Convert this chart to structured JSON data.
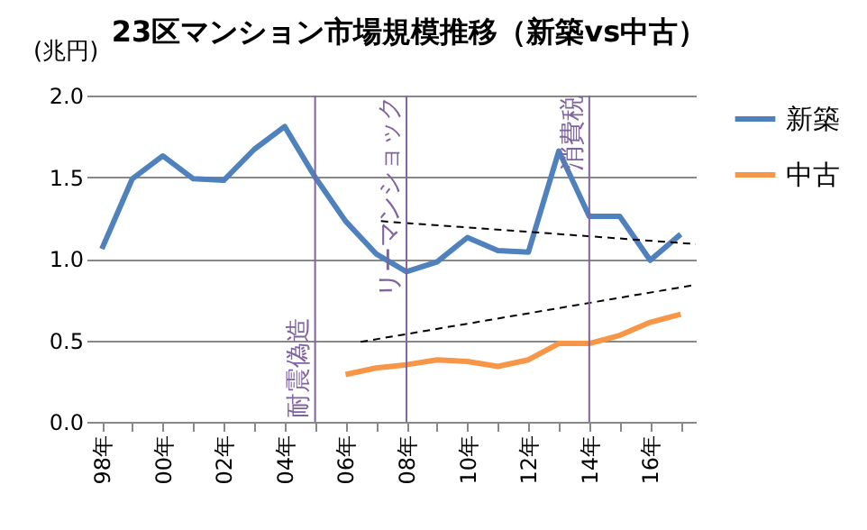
{
  "chart_data": {
    "type": "line",
    "title": "23区マンション市場規模推移（新築vs中古）",
    "ylabel": "(兆円)",
    "x": [
      "1998",
      "1999",
      "2000",
      "2001",
      "2002",
      "2003",
      "2004",
      "2005",
      "2006",
      "2007",
      "2008",
      "2009",
      "2010",
      "2011",
      "2012",
      "2013",
      "2014",
      "2015",
      "2016",
      "2017"
    ],
    "xlim": [
      "1997-07",
      "2017-07"
    ],
    "xticks": [
      {
        "value": "1998",
        "label": "98年"
      },
      {
        "value": "1999",
        "label": null
      },
      {
        "value": "2000",
        "label": "00年"
      },
      {
        "value": "2001",
        "label": null
      },
      {
        "value": "2002",
        "label": "02年"
      },
      {
        "value": "2003",
        "label": null
      },
      {
        "value": "2004",
        "label": "04年"
      },
      {
        "value": "2005",
        "label": null
      },
      {
        "value": "2006",
        "label": "06年"
      },
      {
        "value": "2007",
        "label": null
      },
      {
        "value": "2008",
        "label": "08年"
      },
      {
        "value": "2009",
        "label": null
      },
      {
        "value": "2010",
        "label": "10年"
      },
      {
        "value": "2011",
        "label": null
      },
      {
        "value": "2012",
        "label": "12年"
      },
      {
        "value": "2013",
        "label": null
      },
      {
        "value": "2014",
        "label": "14年"
      },
      {
        "value": "2015",
        "label": null
      },
      {
        "value": "2016",
        "label": "16年"
      },
      {
        "value": "2017",
        "label": null
      }
    ],
    "ylim": [
      0,
      2.0
    ],
    "yticks": [
      {
        "value": 0,
        "label": "0.0"
      },
      {
        "value": 0.5,
        "label": "0.5"
      },
      {
        "value": 1.0,
        "label": "1.0"
      },
      {
        "value": 1.5,
        "label": "1.5"
      },
      {
        "value": 2.0,
        "label": "2.0"
      }
    ],
    "grid": "y",
    "legend": "right",
    "series": [
      {
        "name": "新築",
        "color": "#4f81bd",
        "values": [
          1.06,
          1.49,
          1.63,
          1.49,
          1.48,
          1.67,
          1.81,
          1.5,
          1.23,
          1.03,
          0.92,
          0.98,
          1.13,
          1.05,
          1.04,
          1.66,
          1.26,
          1.26,
          0.99,
          1.15
        ]
      },
      {
        "name": "中古",
        "color": "#f79646",
        "values": [
          null,
          null,
          null,
          null,
          null,
          null,
          null,
          null,
          0.29,
          0.33,
          0.35,
          0.38,
          0.37,
          0.34,
          0.38,
          0.48,
          0.48,
          0.53,
          0.61,
          0.66
        ]
      },
      {
        "type": "line",
        "color": "#000000",
        "line_style": "dashed",
        "x": [
          "2007-03",
          "2017-07"
        ],
        "values": [
          1.23,
          1.09
        ]
      },
      {
        "type": "line",
        "color": "#000000",
        "line_style": "dashed",
        "x": [
          "2006-07",
          "2017-07"
        ],
        "values": [
          0.49,
          0.84
        ]
      }
    ],
    "ref_lines": [
      {
        "axis": "x",
        "value": "2005",
        "label": "耐震偽造",
        "color": "#8064a2"
      },
      {
        "axis": "x",
        "value": "2008",
        "label": "リーマンショック",
        "color": "#8064a2"
      },
      {
        "axis": "x",
        "value": "2014",
        "label": "消費税",
        "color": "#8064a2"
      }
    ]
  }
}
